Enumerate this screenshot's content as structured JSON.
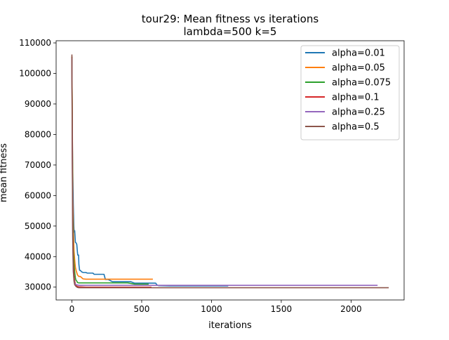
{
  "chart_data": {
    "type": "line",
    "title": "tour29: Mean fitness vs iterations",
    "subtitle": "lambda=500 k=5",
    "xlabel": "iterations",
    "ylabel": "mean fitness",
    "xlim": [
      -113,
      2380
    ],
    "ylim": [
      25800,
      110700
    ],
    "xticks": [
      0,
      500,
      1000,
      1500,
      2000
    ],
    "yticks": [
      30000,
      40000,
      50000,
      60000,
      70000,
      80000,
      90000,
      100000,
      110000
    ],
    "grid": false,
    "legend_position": "top-right",
    "series": [
      {
        "name": "alpha=0.01",
        "color": "#1f77b4",
        "x": [
          0,
          3,
          6,
          10,
          14,
          16,
          20,
          25,
          30,
          35,
          40,
          42,
          48,
          50,
          55,
          60,
          70,
          80,
          90,
          100,
          110,
          130,
          150,
          160,
          200,
          210,
          230,
          240,
          260,
          290,
          300,
          420,
          450,
          460,
          480,
          500,
          530,
          550,
          600,
          610,
          620,
          700,
          800,
          1000,
          1120
        ],
        "y": [
          105500,
          80000,
          68000,
          57000,
          50000,
          48000,
          48500,
          44700,
          44500,
          44000,
          41300,
          40500,
          40500,
          37500,
          35500,
          35500,
          35000,
          34800,
          34800,
          34800,
          34600,
          34600,
          34600,
          34200,
          34200,
          34200,
          34200,
          32500,
          32500,
          31800,
          31800,
          31800,
          31300,
          31300,
          31300,
          31300,
          31300,
          31300,
          31300,
          30700,
          30500,
          30400,
          30400,
          30400,
          30400
        ]
      },
      {
        "name": "alpha=0.05",
        "color": "#ff7f0e",
        "x": [
          0,
          3,
          6,
          10,
          15,
          20,
          25,
          30,
          40,
          50,
          60,
          80,
          100,
          200,
          300,
          400,
          500,
          580
        ],
        "y": [
          105500,
          85000,
          60000,
          50000,
          42000,
          39000,
          36500,
          35500,
          34000,
          33500,
          33500,
          32700,
          32600,
          32600,
          32600,
          32600,
          32600,
          32600
        ]
      },
      {
        "name": "alpha=0.075",
        "color": "#2ca02c",
        "x": [
          0,
          3,
          6,
          10,
          15,
          20,
          25,
          30,
          35,
          40,
          50,
          60,
          100,
          200,
          300,
          400,
          450,
          540,
          550
        ],
        "y": [
          105500,
          80000,
          55000,
          42000,
          38000,
          35000,
          33000,
          32200,
          32000,
          31500,
          31400,
          31400,
          31400,
          31400,
          31400,
          31400,
          31000,
          31000,
          31000
        ]
      },
      {
        "name": "alpha=0.1",
        "color": "#d62728",
        "x": [
          0,
          3,
          6,
          10,
          15,
          20,
          25,
          30,
          40,
          50,
          100,
          200,
          300,
          400,
          500,
          570
        ],
        "y": [
          105500,
          75000,
          50000,
          38000,
          34000,
          32000,
          31000,
          30500,
          30200,
          30100,
          30000,
          30000,
          30000,
          30000,
          30000,
          30000
        ]
      },
      {
        "name": "alpha=0.25",
        "color": "#9467bd",
        "x": [
          0,
          3,
          6,
          10,
          15,
          20,
          30,
          40,
          50,
          100,
          500,
          1000,
          1500,
          2000,
          2190
        ],
        "y": [
          105000,
          70000,
          45000,
          35000,
          32500,
          31200,
          30800,
          30700,
          30600,
          30600,
          30600,
          30600,
          30600,
          30600,
          30600
        ]
      },
      {
        "name": "alpha=0.5",
        "color": "#8c564b",
        "x": [
          0,
          3,
          6,
          10,
          15,
          20,
          30,
          40,
          50,
          100,
          200,
          600,
          1000,
          1500,
          2000,
          2270
        ],
        "y": [
          106200,
          72000,
          47000,
          36000,
          32000,
          30800,
          30200,
          29900,
          29800,
          29800,
          29800,
          29800,
          29800,
          29800,
          29800,
          29800
        ]
      }
    ]
  }
}
